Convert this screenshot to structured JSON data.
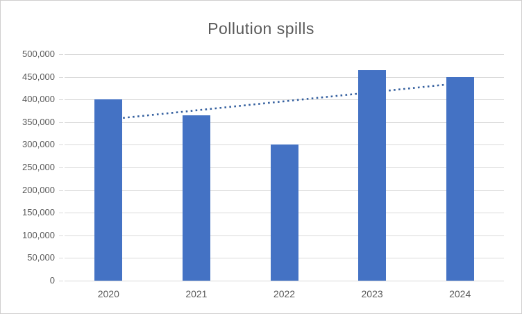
{
  "chart_data": {
    "type": "bar",
    "title": "Pollution spills",
    "categories": [
      "2020",
      "2021",
      "2022",
      "2023",
      "2024"
    ],
    "values": [
      400000,
      365000,
      300000,
      465000,
      450000
    ],
    "xlabel": "",
    "ylabel": "",
    "ylim": [
      0,
      500000
    ],
    "ytick_step": 50000,
    "ytick_labels": [
      "0",
      "50,000",
      "100,000",
      "150,000",
      "200,000",
      "250,000",
      "300,000",
      "350,000",
      "400,000",
      "450,000",
      "500,000"
    ],
    "grid": true,
    "legend_position": "none",
    "trendline": {
      "style": "dotted",
      "start_value": 356000,
      "end_value": 436000
    }
  },
  "colors": {
    "bar_fill": "#4472C4",
    "trendline": "#35609F",
    "gridline": "#D9D9D9",
    "axis_text": "#595959",
    "title_text": "#595959",
    "chart_border": "#D0CECE",
    "background": "#FFFFFF"
  }
}
